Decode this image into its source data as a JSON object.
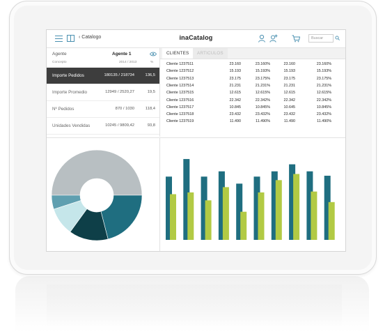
{
  "app": {
    "title": "inaCatalog",
    "back_label": "Catalogo",
    "search_placeholder": "Buscar"
  },
  "agent": {
    "label": "Agente",
    "value": "Agente 1",
    "columns": {
      "concept": "Concepto",
      "years": "2014 / 2013",
      "pct": "%"
    }
  },
  "metrics": [
    {
      "label": "Importe Pedidos",
      "value": "180135 / 218734",
      "pct": "136,5",
      "active": true
    },
    {
      "label": "Importe Promedio",
      "value": "12949 / 2520,27",
      "pct": "19,5",
      "active": false
    },
    {
      "label": "Nº Pedidos",
      "value": "870 / 1030",
      "pct": "118,4",
      "active": false
    },
    {
      "label": "Unidades Vendidas",
      "value": "10245 / 9809,42",
      "pct": "93,8",
      "active": false
    }
  ],
  "tabs": [
    {
      "label": "CLIENTES",
      "active": true
    },
    {
      "label": "ARTICULOS",
      "active": false
    }
  ],
  "table": {
    "rows": [
      [
        "Cliente 1237511",
        "23.160",
        "23.160%",
        "23.160",
        "23.160%"
      ],
      [
        "Cliente 1237512",
        "15.193",
        "15.193%",
        "15.193",
        "15.193%"
      ],
      [
        "Cliente 1237513",
        "23.175",
        "23.175%",
        "23.175",
        "23.175%"
      ],
      [
        "Cliente 1237514",
        "21.231",
        "21.231%",
        "21.231",
        "21.231%"
      ],
      [
        "Cliente 1237515",
        "12.615",
        "12.615%",
        "12.615",
        "12.615%"
      ],
      [
        "Cliente 1237516",
        "22.342",
        "22.342%",
        "22.342",
        "22.342%"
      ],
      [
        "Cliente 1237517",
        "10.845",
        "10.845%",
        "10.645",
        "10.845%"
      ],
      [
        "Cliente 1237518",
        "23.432",
        "23.432%",
        "23.432",
        "23.432%"
      ],
      [
        "Cliente 1237519",
        "11.490",
        "11.490%",
        "11.490",
        "11.490%"
      ]
    ]
  },
  "colors": {
    "teal_dark": "#1f6e80",
    "teal_darker": "#0e3f48",
    "teal_light": "#c5e6ea",
    "teal_mid": "#5f9fb0",
    "gray": "#b8bfc2",
    "lime": "#b2ca44",
    "active_row": "#3d3d3d",
    "icon_blue": "#4a90b0"
  },
  "icons": [
    "menu-icon",
    "book-icon",
    "chevron-left-icon",
    "user-icon",
    "user-add-icon",
    "cart-icon",
    "search-icon",
    "eye-icon"
  ],
  "chart_data": [
    {
      "type": "pie",
      "donut": true,
      "values": [
        50,
        21,
        14,
        10,
        5
      ],
      "colors": [
        "#b8bfc2",
        "#1f6e80",
        "#0e3f48",
        "#c5e6ea",
        "#5f9fb0"
      ]
    },
    {
      "type": "bar",
      "ylim": [
        0,
        100
      ],
      "series": [
        {
          "values": [
            72,
            92,
            72,
            78,
            64,
            72,
            78,
            86,
            78,
            73
          ],
          "color": "#1f6e80"
        },
        {
          "values": [
            52,
            54,
            45,
            60,
            32,
            54,
            68,
            75,
            55,
            43
          ],
          "color": "#b2ca44"
        }
      ]
    }
  ]
}
